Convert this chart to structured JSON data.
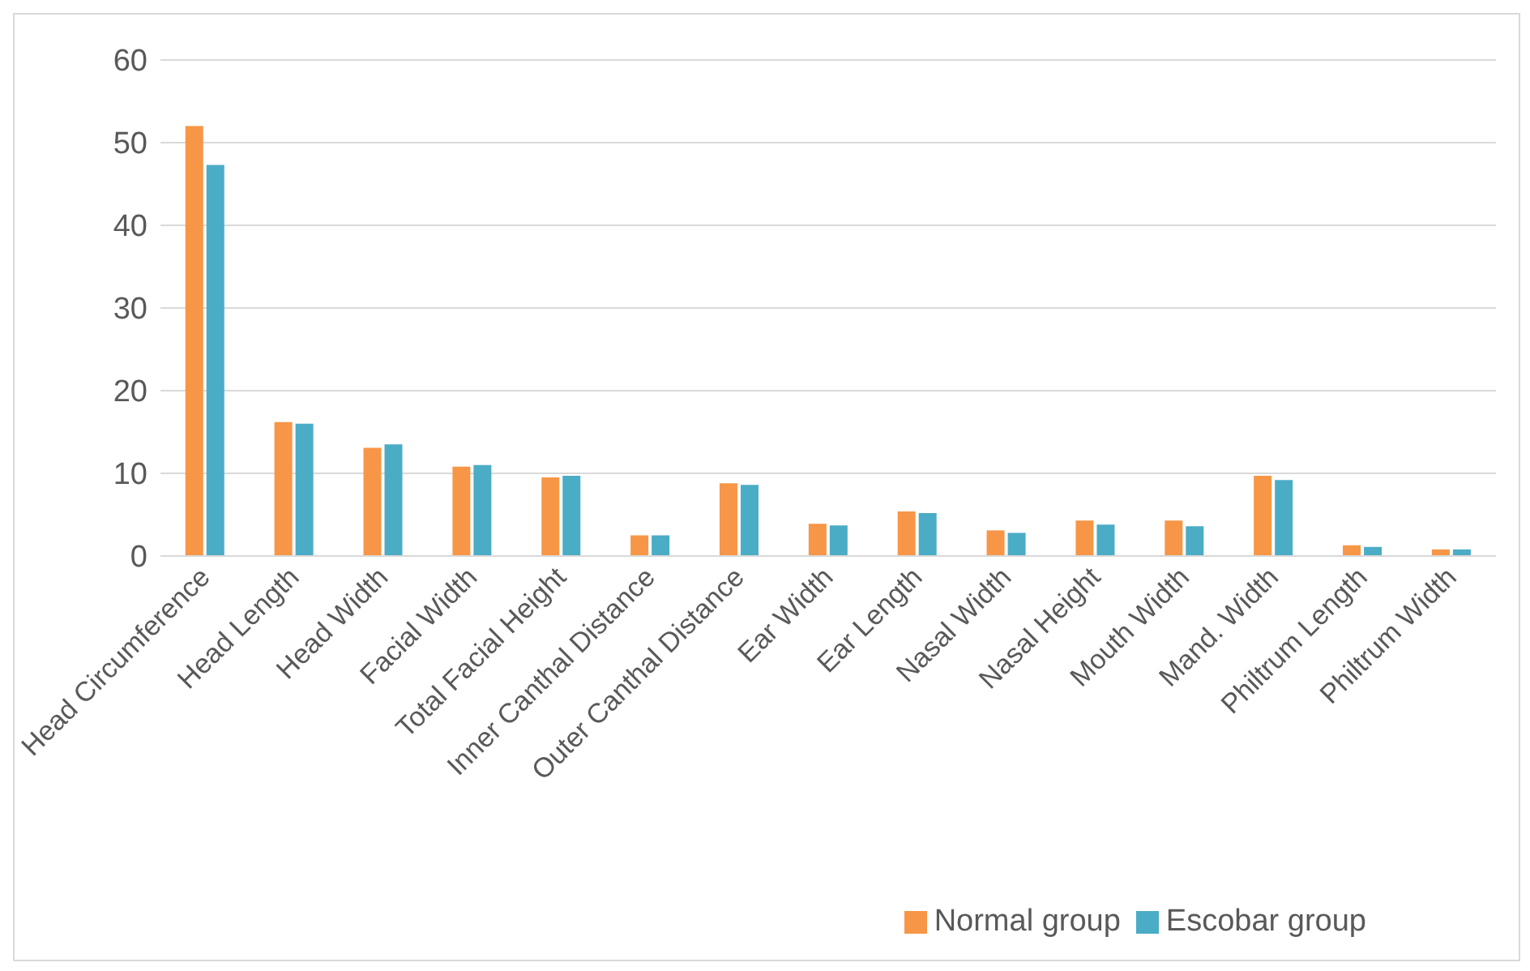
{
  "chart_data": {
    "type": "bar",
    "categories": [
      "Head Circumference",
      "Head Length",
      "Head Width",
      "Facial Width",
      "Total Facial Height",
      "Inner Canthal Distance",
      "Outer Canthal Distance",
      "Ear Width",
      "Ear Length",
      "Nasal Width",
      "Nasal Height",
      "Mouth Width",
      "Mand. Width",
      "Philtrum Length",
      "Philtrum Width"
    ],
    "series": [
      {
        "name": "Normal group",
        "color": "#f79646",
        "values": [
          52,
          16.2,
          13.1,
          10.8,
          9.5,
          2.5,
          8.8,
          3.9,
          5.4,
          3.1,
          4.3,
          4.3,
          9.7,
          1.3,
          0.8
        ]
      },
      {
        "name": "Escobar group",
        "color": "#4bacc6",
        "values": [
          47.3,
          16,
          13.5,
          11,
          9.7,
          2.5,
          8.6,
          3.7,
          5.2,
          2.8,
          3.8,
          3.6,
          9.2,
          1.1,
          0.8
        ]
      }
    ],
    "ylim": [
      0,
      60
    ],
    "yticks": [
      0,
      10,
      20,
      30,
      40,
      50,
      60
    ],
    "grid": "y",
    "legend": "bottom right"
  }
}
